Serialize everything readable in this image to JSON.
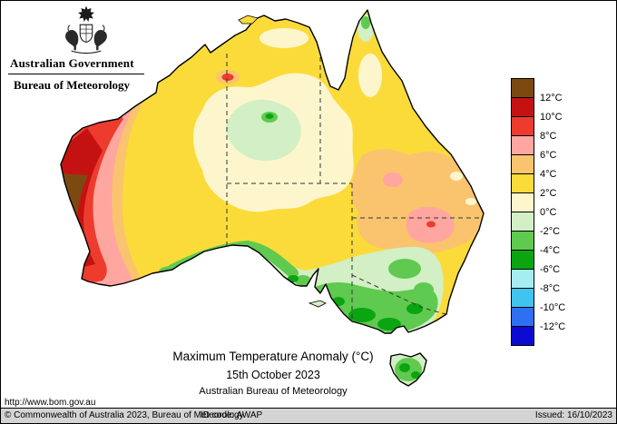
{
  "header": {
    "government": "Australian Government",
    "bureau": "Bureau of Meteorology"
  },
  "map": {
    "title": "Maximum Temperature Anomaly (°C)",
    "date": "15th October 2023",
    "source": "Australian Bureau of Meteorology",
    "url": "http://www.bom.gov.au"
  },
  "palette": {
    "brown": "#7c4a11",
    "dark_red": "#c41212",
    "red": "#ed3c2d",
    "pink": "#ffa6a0",
    "orange": "#f9c46d",
    "yellow": "#fbdb3a",
    "cream": "#fdf6cd",
    "green_light": "#d2efc5",
    "green_mid": "#5fca4f",
    "green_dark": "#0ba512",
    "cyan_light": "#a6edf2",
    "cyan": "#3ec4ef",
    "blue": "#2f6ff2",
    "blue_dark": "#0a0ad2"
  },
  "legend": {
    "unit": "°C",
    "entries": [
      {
        "label": "12°C",
        "color": "brown"
      },
      {
        "label": "10°C",
        "color": "dark_red"
      },
      {
        "label": "8°C",
        "color": "red"
      },
      {
        "label": "6°C",
        "color": "pink"
      },
      {
        "label": "4°C",
        "color": "orange"
      },
      {
        "label": "2°C",
        "color": "yellow"
      },
      {
        "label": "0°C",
        "color": "cream"
      },
      {
        "label": "-2°C",
        "color": "green_light"
      },
      {
        "label": "-4°C",
        "color": "green_mid"
      },
      {
        "label": "-6°C",
        "color": "green_dark"
      },
      {
        "label": "-8°C",
        "color": "cyan_light"
      },
      {
        "label": "-10°C",
        "color": "cyan"
      },
      {
        "label": "-12°C",
        "color": "blue"
      },
      {
        "label": "",
        "color": "blue_dark"
      }
    ]
  },
  "footer": {
    "copyright": "© Commonwealth of Australia 2023, Bureau of Meteorology",
    "id_code": "ID code: AWAP",
    "issued": "Issued: 16/10/2023"
  },
  "chart_data": {
    "type": "heatmap",
    "title": "Maximum Temperature Anomaly (°C)",
    "date": "15th October 2023",
    "unit": "°C",
    "scale_bands": [
      {
        "range": "above +12",
        "color_key": "brown"
      },
      {
        "range": "+10 to +12",
        "color_key": "dark_red"
      },
      {
        "range": "+8 to +10",
        "color_key": "red"
      },
      {
        "range": "+6 to +8",
        "color_key": "pink"
      },
      {
        "range": "+4 to +6",
        "color_key": "orange"
      },
      {
        "range": "+2 to +4",
        "color_key": "yellow"
      },
      {
        "range": "0 to +2",
        "color_key": "cream"
      },
      {
        "range": "-2 to 0",
        "color_key": "green_light"
      },
      {
        "range": "-4 to -2",
        "color_key": "green_mid"
      },
      {
        "range": "-6 to -4",
        "color_key": "green_dark"
      },
      {
        "range": "-8 to -6",
        "color_key": "cyan_light"
      },
      {
        "range": "-10 to -8",
        "color_key": "cyan"
      },
      {
        "range": "-12 to -10",
        "color_key": "blue"
      },
      {
        "range": "below -12",
        "color_key": "blue_dark"
      }
    ],
    "regions": [
      {
        "area": "West coast of Western Australia",
        "anomaly_c": "+8 to above +12"
      },
      {
        "area": "Most of the interior of the continent",
        "anomaly_c": "+2 to +4"
      },
      {
        "area": "Central Northern Territory",
        "anomaly_c": "0 to +2 with a pocket of 0 to -2"
      },
      {
        "area": "Inland southern Queensland",
        "anomaly_c": "+4 to +8"
      },
      {
        "area": "Southern SA, Victoria and southern NSW",
        "anomaly_c": "0 to -6"
      },
      {
        "area": "Tasmania",
        "anomaly_c": "-2 to -6"
      }
    ]
  }
}
